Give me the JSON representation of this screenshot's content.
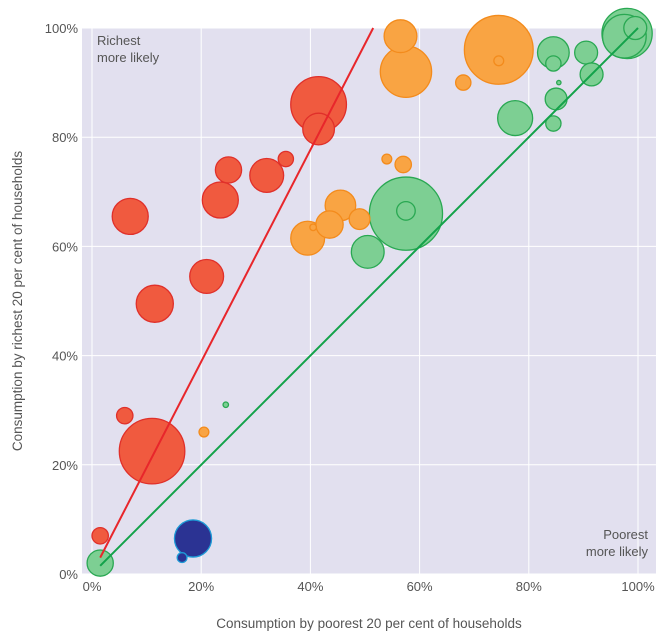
{
  "chart_data": {
    "type": "scatter",
    "title": "",
    "xlabel": "Consumption by poorest 20 per cent of households",
    "ylabel": "Consumption by richest 20 per cent of households",
    "xlim": [
      0,
      100
    ],
    "ylim": [
      0,
      100
    ],
    "x_ticks": [
      "0%",
      "20%",
      "40%",
      "60%",
      "80%",
      "100%"
    ],
    "y_ticks": [
      "0%",
      "20%",
      "40%",
      "60%",
      "80%",
      "100%"
    ],
    "grid": true,
    "annotations": {
      "top_left": [
        "Richest",
        "more likely"
      ],
      "bottom_right": [
        "Poorest",
        "more likely"
      ]
    },
    "colors": {
      "background": "#e2e0ef",
      "grid": "#ffffff",
      "red": "#f05a3f",
      "red_stroke": "#e0302a",
      "orange": "#f9a443",
      "orange_stroke": "#f38b1c",
      "green": "#7dcf93",
      "green_stroke": "#29a852",
      "blue": "#2b3393",
      "blue_stroke": "#1e9ad6",
      "red_line": "#e8262b",
      "green_line": "#13a24a"
    },
    "lines": [
      {
        "color": "red",
        "points": [
          [
            1.5,
            3
          ],
          [
            51.5,
            100
          ]
        ]
      },
      {
        "color": "green",
        "points": [
          [
            1.5,
            1.5
          ],
          [
            100,
            100
          ]
        ]
      }
    ],
    "points": [
      {
        "x": 1.5,
        "y": 7,
        "size": 1.5,
        "color": "red"
      },
      {
        "x": 6,
        "y": 29,
        "size": 1.5,
        "color": "red"
      },
      {
        "x": 7,
        "y": 65.5,
        "size": 3.3,
        "color": "red"
      },
      {
        "x": 11,
        "y": 22.5,
        "size": 6.0,
        "color": "red"
      },
      {
        "x": 11.5,
        "y": 49.5,
        "size": 3.4,
        "color": "red"
      },
      {
        "x": 21,
        "y": 54.5,
        "size": 3.1,
        "color": "red"
      },
      {
        "x": 23.5,
        "y": 68.5,
        "size": 3.3,
        "color": "red"
      },
      {
        "x": 25,
        "y": 74,
        "size": 2.4,
        "color": "red"
      },
      {
        "x": 32,
        "y": 73,
        "size": 3.1,
        "color": "red"
      },
      {
        "x": 35.5,
        "y": 76,
        "size": 1.4,
        "color": "red"
      },
      {
        "x": 41.5,
        "y": 81.5,
        "size": 2.9,
        "color": "red"
      },
      {
        "x": 41.5,
        "y": 86,
        "size": 5.1,
        "color": "red"
      },
      {
        "x": 20.5,
        "y": 26,
        "size": 0.9,
        "color": "orange"
      },
      {
        "x": 39.5,
        "y": 61.5,
        "size": 3.1,
        "color": "orange"
      },
      {
        "x": 40.5,
        "y": 63.5,
        "size": 0.6,
        "color": "orange"
      },
      {
        "x": 43.5,
        "y": 64,
        "size": 2.5,
        "color": "orange"
      },
      {
        "x": 45.5,
        "y": 67.5,
        "size": 2.8,
        "color": "orange"
      },
      {
        "x": 49,
        "y": 65,
        "size": 1.9,
        "color": "orange"
      },
      {
        "x": 54,
        "y": 76,
        "size": 0.9,
        "color": "orange"
      },
      {
        "x": 57,
        "y": 75,
        "size": 1.5,
        "color": "orange"
      },
      {
        "x": 56.5,
        "y": 98.5,
        "size": 3.0,
        "color": "orange"
      },
      {
        "x": 57.5,
        "y": 92,
        "size": 4.7,
        "color": "orange"
      },
      {
        "x": 68,
        "y": 90,
        "size": 1.4,
        "color": "orange"
      },
      {
        "x": 74.5,
        "y": 96,
        "size": 6.3,
        "color": "orange"
      },
      {
        "x": 74.5,
        "y": 94,
        "size": 0.9,
        "color": "orange"
      },
      {
        "x": 1.5,
        "y": 2,
        "size": 2.4,
        "color": "green"
      },
      {
        "x": 24.5,
        "y": 31,
        "size": 0.5,
        "color": "green"
      },
      {
        "x": 50.5,
        "y": 59,
        "size": 3.0,
        "color": "green"
      },
      {
        "x": 57.5,
        "y": 66,
        "size": 6.7,
        "color": "green"
      },
      {
        "x": 57.5,
        "y": 66.5,
        "size": 1.7,
        "color": "green"
      },
      {
        "x": 77.5,
        "y": 83.5,
        "size": 3.2,
        "color": "green"
      },
      {
        "x": 84.5,
        "y": 82.5,
        "size": 1.4,
        "color": "green"
      },
      {
        "x": 85,
        "y": 87,
        "size": 2.0,
        "color": "green"
      },
      {
        "x": 85.5,
        "y": 90,
        "size": 0.4,
        "color": "green"
      },
      {
        "x": 84.5,
        "y": 93.5,
        "size": 1.4,
        "color": "green"
      },
      {
        "x": 84.5,
        "y": 95.5,
        "size": 2.9,
        "color": "green"
      },
      {
        "x": 90.5,
        "y": 95.5,
        "size": 2.1,
        "color": "green"
      },
      {
        "x": 91.5,
        "y": 91.5,
        "size": 2.1,
        "color": "green"
      },
      {
        "x": 97.5,
        "y": 98.5,
        "size": 4.0,
        "color": "green"
      },
      {
        "x": 98,
        "y": 99,
        "size": 4.6,
        "color": "green"
      },
      {
        "x": 99.5,
        "y": 100,
        "size": 2.1,
        "color": "green"
      },
      {
        "x": 16.5,
        "y": 3,
        "size": 0.9,
        "color": "blue"
      },
      {
        "x": 18.5,
        "y": 6.5,
        "size": 3.4,
        "color": "blue"
      }
    ]
  }
}
